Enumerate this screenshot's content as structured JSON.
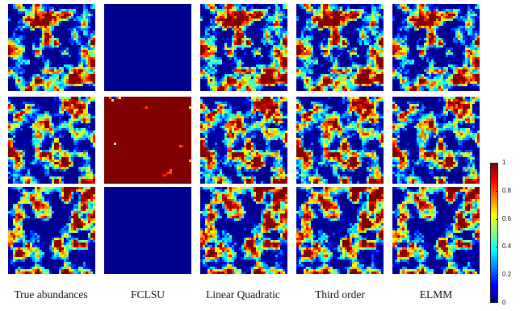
{
  "columns": [
    {
      "label": "True abundances",
      "style": "true",
      "fill": 0.32
    },
    {
      "label": "FCLSU",
      "style": "fclsu",
      "fill": 0.14
    },
    {
      "label": "Linear Quadratic",
      "style": "lq",
      "fill": 0.36
    },
    {
      "label": "Third order",
      "style": "third",
      "fill": 0.36
    },
    {
      "label": "ELMM",
      "style": "elmm",
      "fill": 0.32
    }
  ],
  "rows": [
    {
      "seed": 11,
      "fclsu_fill": 0.06
    },
    {
      "seed": 27,
      "fclsu_fill": 0.88
    },
    {
      "seed": 43,
      "fclsu_fill": 0.18
    }
  ],
  "colorbar": {
    "ticks": [
      "0",
      "0.2",
      "0.4",
      "0.6",
      "0.8",
      "1"
    ],
    "min": 0,
    "max": 1,
    "colors": [
      "#00008f",
      "#0000ff",
      "#0080ff",
      "#00ffff",
      "#80ff80",
      "#ffff00",
      "#ff8000",
      "#ff0000",
      "#800000"
    ]
  }
}
